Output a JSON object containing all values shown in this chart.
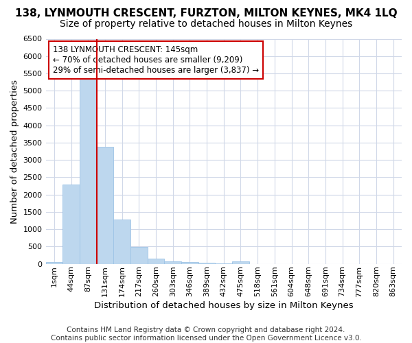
{
  "title": "138, LYNMOUTH CRESCENT, FURZTON, MILTON KEYNES, MK4 1LQ",
  "subtitle": "Size of property relative to detached houses in Milton Keynes",
  "xlabel": "Distribution of detached houses by size in Milton Keynes",
  "ylabel": "Number of detached properties",
  "footnote": "Contains HM Land Registry data © Crown copyright and database right 2024.\nContains public sector information licensed under the Open Government Licence v3.0.",
  "bin_labels": [
    "1sqm",
    "44sqm",
    "87sqm",
    "131sqm",
    "174sqm",
    "217sqm",
    "260sqm",
    "303sqm",
    "346sqm",
    "389sqm",
    "432sqm",
    "475sqm",
    "518sqm",
    "561sqm",
    "604sqm",
    "648sqm",
    "691sqm",
    "734sqm",
    "777sqm",
    "820sqm",
    "863sqm"
  ],
  "bar_heights": [
    60,
    2300,
    5450,
    3380,
    1280,
    480,
    160,
    80,
    50,
    30,
    20,
    80,
    0,
    0,
    0,
    0,
    0,
    0,
    0,
    0,
    0
  ],
  "bar_color": "#bdd7ee",
  "bar_edge_color": "#9dc3e6",
  "red_line_bin_index": 3,
  "red_line_color": "#cc0000",
  "annotation_text": "138 LYNMOUTH CRESCENT: 145sqm\n← 70% of detached houses are smaller (9,209)\n29% of semi-detached houses are larger (3,837) →",
  "annotation_box_color": "#cc0000",
  "ylim": [
    0,
    6500
  ],
  "yticks": [
    0,
    500,
    1000,
    1500,
    2000,
    2500,
    3000,
    3500,
    4000,
    4500,
    5000,
    5500,
    6000,
    6500
  ],
  "fig_bg_color": "#ffffff",
  "plot_bg_color": "#ffffff",
  "grid_color": "#d0d8e8",
  "title_fontsize": 11,
  "subtitle_fontsize": 10,
  "axis_label_fontsize": 9.5,
  "tick_fontsize": 8,
  "annotation_fontsize": 8.5,
  "footnote_fontsize": 7.5
}
